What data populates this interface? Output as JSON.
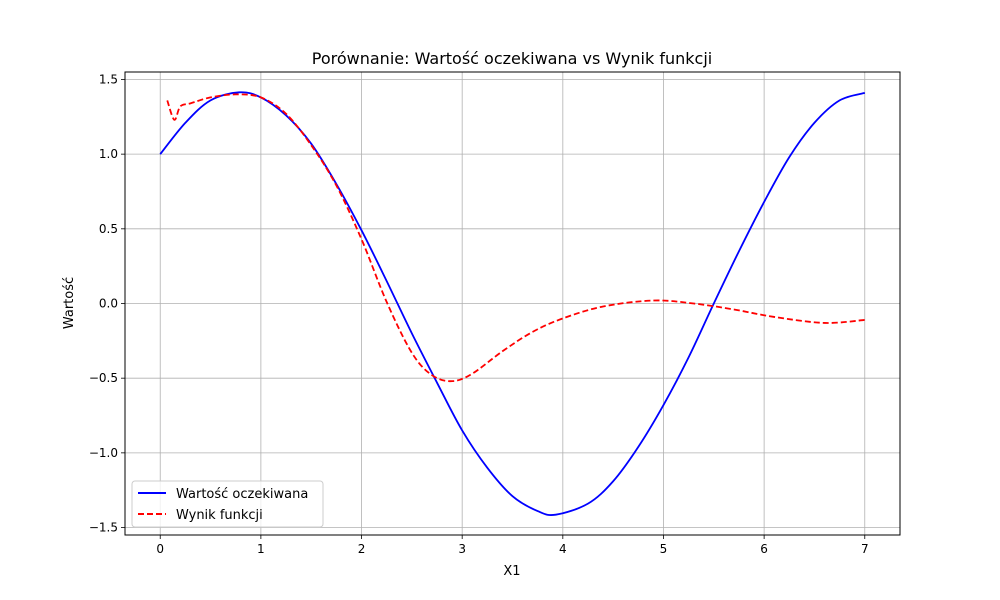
{
  "chart_data": {
    "type": "line",
    "title": "Porównanie: Wartość oczekiwana vs Wynik funkcji",
    "xlabel": "X1",
    "ylabel": "Wartość",
    "xlim": [
      -0.35,
      7.35
    ],
    "ylim": [
      -1.55,
      1.55
    ],
    "xticks": [
      0,
      1,
      2,
      3,
      4,
      5,
      6,
      7
    ],
    "xtick_labels": [
      "0",
      "1",
      "2",
      "3",
      "4",
      "5",
      "6",
      "7"
    ],
    "yticks": [
      -1.5,
      -1.0,
      -0.5,
      0.0,
      0.5,
      1.0,
      1.5
    ],
    "ytick_labels": [
      "−1.5",
      "−1.0",
      "−0.5",
      "0.0",
      "0.5",
      "1.0",
      "1.5"
    ],
    "grid": true,
    "legend_position": "lower-left",
    "series": [
      {
        "name": "Wartość oczekiwana",
        "color": "#0000ff",
        "style": "solid",
        "x": [
          0,
          0.25,
          0.5,
          0.785,
          1.0,
          1.25,
          1.5,
          1.75,
          2.0,
          2.25,
          2.5,
          2.75,
          3.0,
          3.25,
          3.5,
          3.75,
          3.93,
          4.25,
          4.5,
          4.75,
          5.0,
          5.25,
          5.5,
          5.75,
          6.0,
          6.25,
          6.5,
          6.75,
          7.0
        ],
        "y": [
          1.0,
          1.21,
          1.36,
          1.414,
          1.38,
          1.26,
          1.07,
          0.8,
          0.49,
          0.15,
          -0.2,
          -0.53,
          -0.85,
          -1.1,
          -1.29,
          -1.39,
          -1.414,
          -1.34,
          -1.19,
          -0.96,
          -0.68,
          -0.36,
          0.0,
          0.35,
          0.68,
          0.98,
          1.21,
          1.36,
          1.41
        ]
      },
      {
        "name": "Wynik funkcji",
        "color": "#ff0000",
        "style": "dashed",
        "x": [
          0.07,
          0.14,
          0.2,
          0.3,
          0.5,
          0.75,
          1.0,
          1.25,
          1.5,
          1.75,
          2.0,
          2.25,
          2.5,
          2.7,
          2.9,
          3.1,
          3.4,
          3.7,
          4.0,
          4.4,
          4.9,
          5.3,
          5.7,
          6.1,
          6.6,
          7.0
        ],
        "y": [
          1.36,
          1.23,
          1.32,
          1.34,
          1.38,
          1.4,
          1.38,
          1.27,
          1.06,
          0.79,
          0.43,
          0.01,
          -0.33,
          -0.48,
          -0.52,
          -0.47,
          -0.32,
          -0.19,
          -0.1,
          -0.02,
          0.02,
          0.0,
          -0.04,
          -0.09,
          -0.13,
          -0.11
        ]
      }
    ]
  }
}
